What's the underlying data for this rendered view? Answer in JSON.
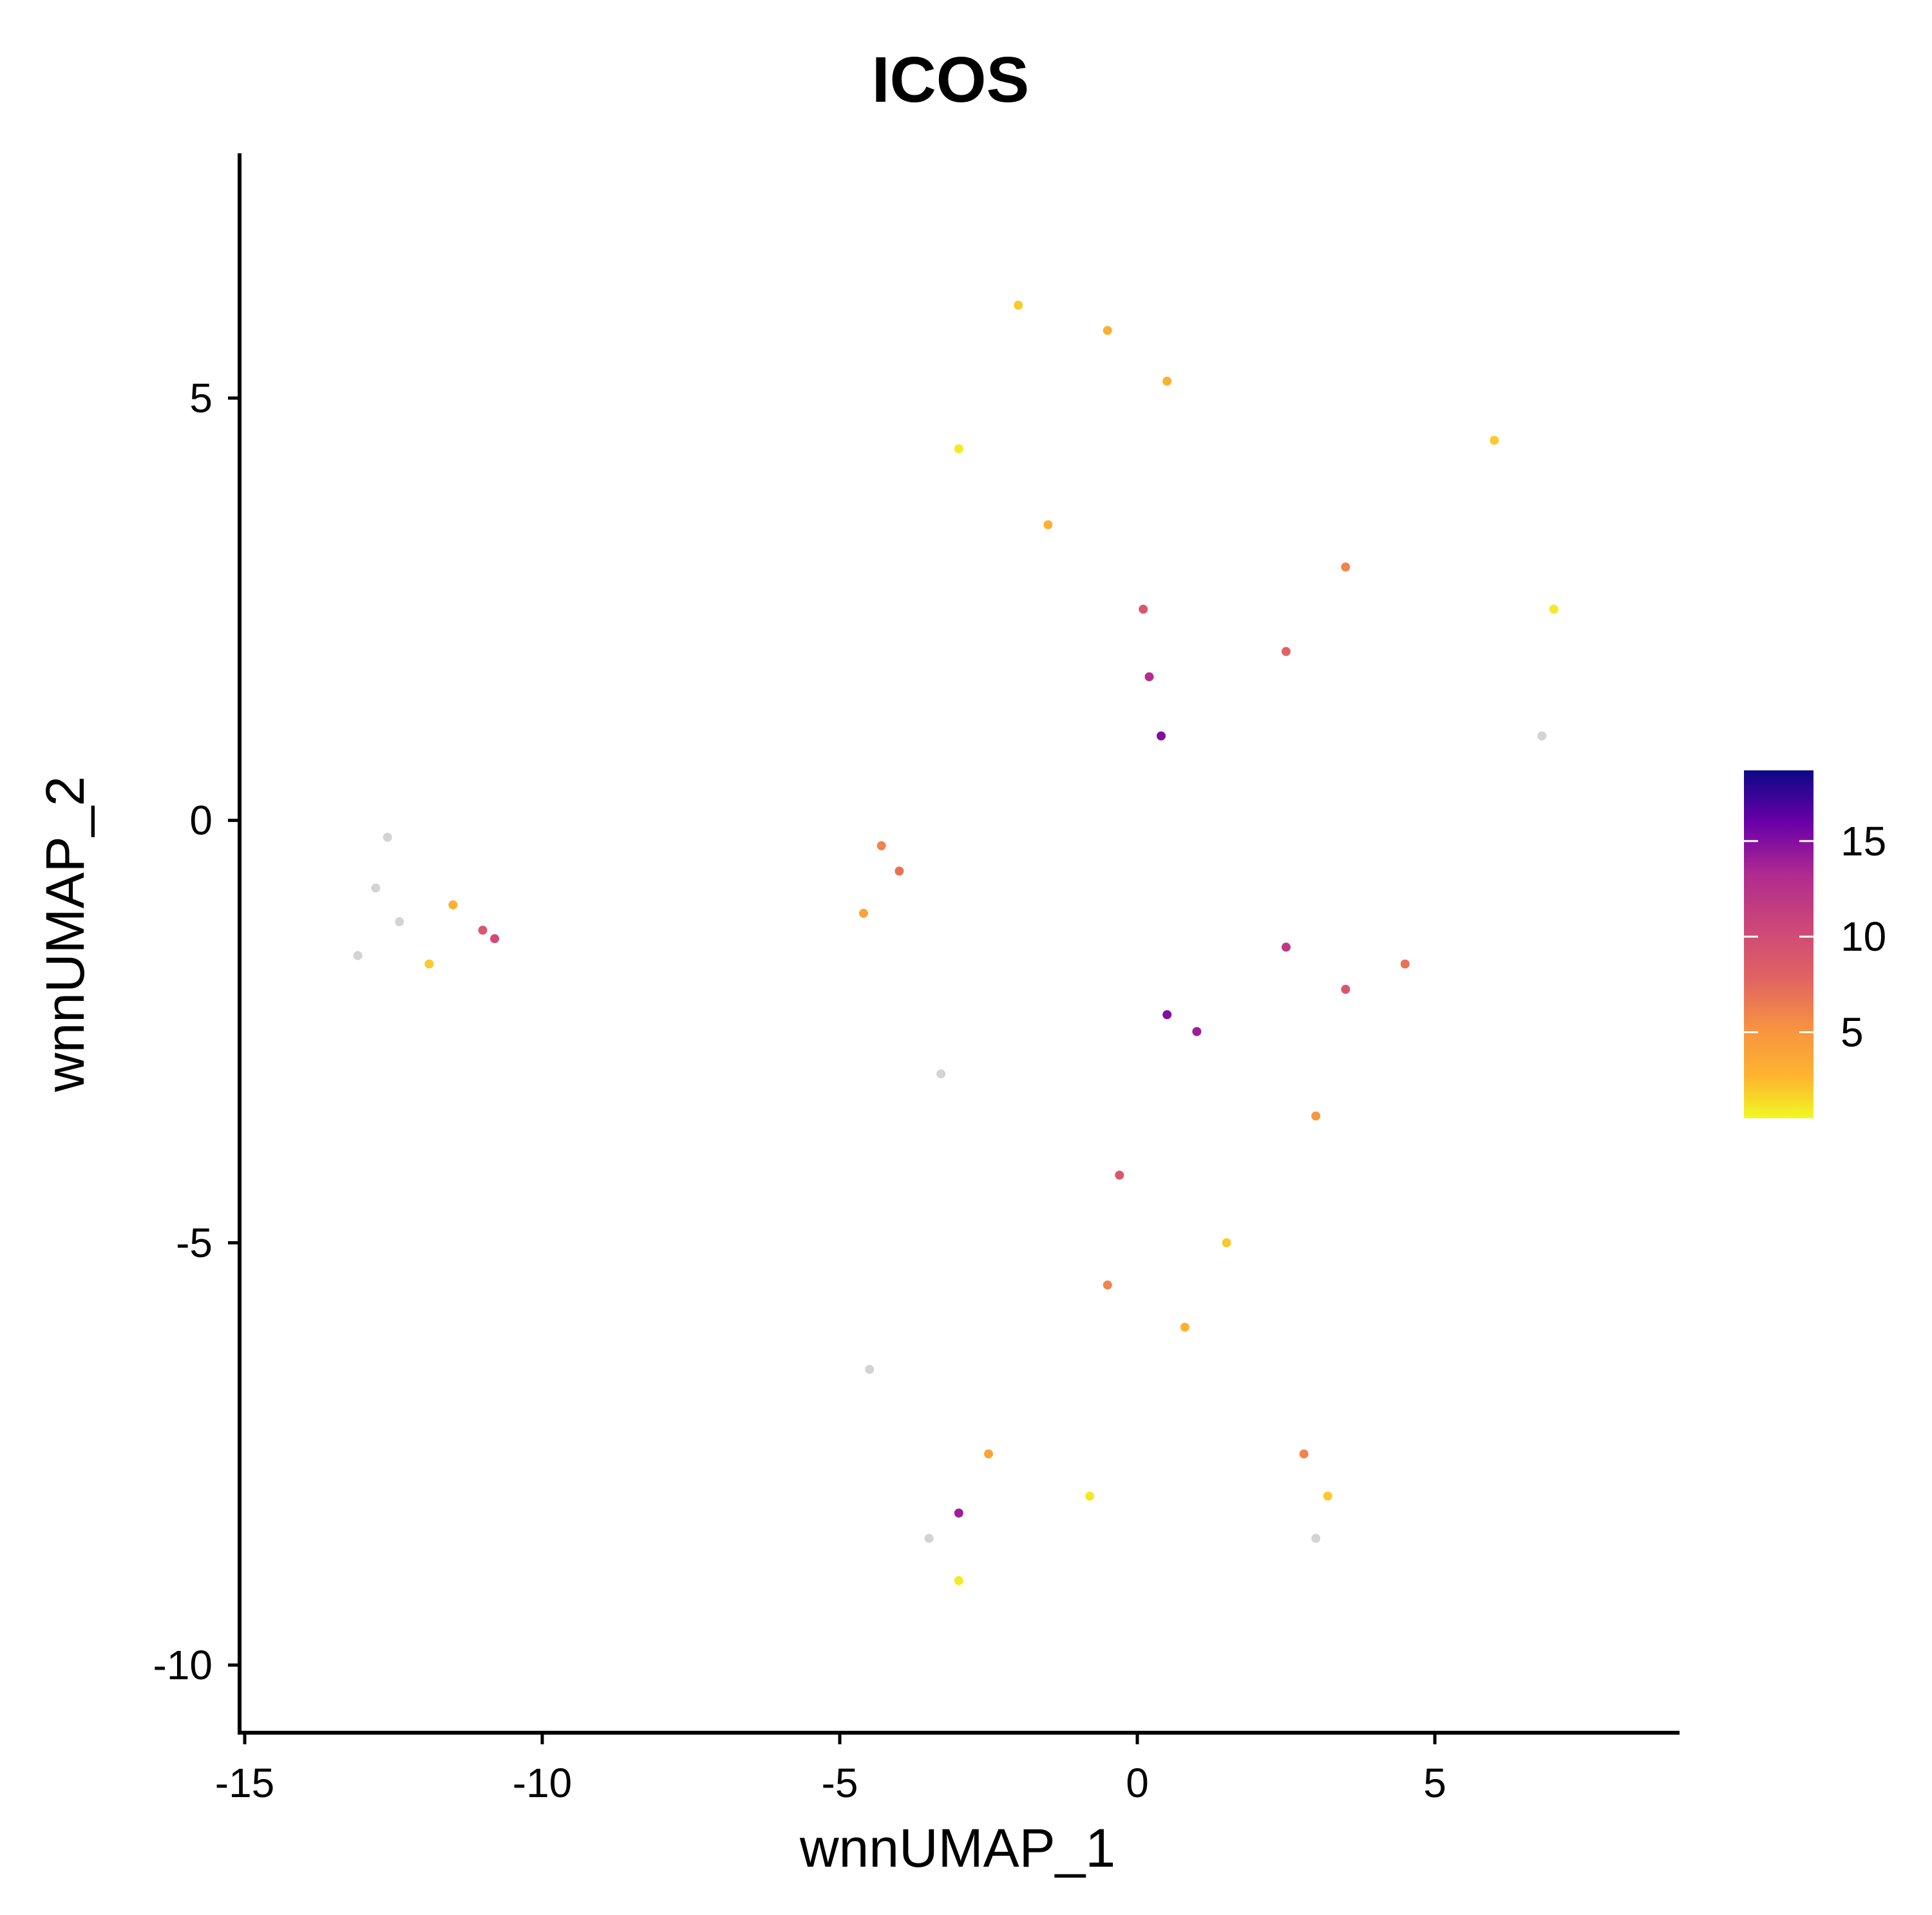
{
  "chart_data": {
    "type": "scatter",
    "title": "ICOS",
    "xlabel": "wnnUMAP_1",
    "ylabel": "wnnUMAP_2",
    "xlim": [
      -15.2,
      9
    ],
    "ylim": [
      -10.8,
      7.9
    ],
    "xticks": [
      -15,
      -10,
      -5,
      0,
      5
    ],
    "xtick_labels": [
      "-15",
      "-10",
      "-5",
      "0",
      "5"
    ],
    "yticks": [
      -10,
      -5,
      0,
      5
    ],
    "ytick_labels": [
      "-10",
      "-5",
      "0",
      "5"
    ],
    "grid": false,
    "legend": {
      "placement": "right",
      "type": "colorbar",
      "range": [
        0.5,
        18.7
      ],
      "ticks": [
        5,
        10,
        15
      ],
      "tick_labels": [
        "5",
        "10",
        "15"
      ]
    },
    "colors": {
      "zero_expression": "#d3d3d3",
      "colormap": "plasma",
      "scale_low": "#f0f921",
      "scale_high": "#0d0887"
    },
    "series": [
      {
        "kind": "sampled_points",
        "points": [
          [
            -12.8,
            -0.8,
            0
          ],
          [
            -12.4,
            -1.2,
            0
          ],
          [
            -13.1,
            -1.6,
            0
          ],
          [
            -12.6,
            -0.2,
            0
          ],
          [
            -11.5,
            -1.0,
            3
          ],
          [
            -11.0,
            -1.3,
            9
          ],
          [
            -10.8,
            -1.4,
            10
          ],
          [
            -11.9,
            -1.7,
            2
          ],
          [
            -4.3,
            -0.3,
            6
          ],
          [
            -4.6,
            -1.1,
            4
          ],
          [
            -4.0,
            -0.6,
            7
          ],
          [
            -0.5,
            5.8,
            3
          ],
          [
            -2.0,
            6.1,
            2
          ],
          [
            0.5,
            5.2,
            3
          ],
          [
            -3.0,
            4.4,
            1
          ],
          [
            -1.5,
            3.5,
            3
          ],
          [
            0.2,
            1.7,
            13
          ],
          [
            0.4,
            1.0,
            15
          ],
          [
            0.1,
            2.5,
            9
          ],
          [
            2.5,
            2.0,
            8
          ],
          [
            3.5,
            3.0,
            6
          ],
          [
            6.0,
            4.5,
            2
          ],
          [
            7.0,
            2.5,
            1
          ],
          [
            6.8,
            1.0,
            0
          ],
          [
            0.5,
            -2.3,
            15
          ],
          [
            1.0,
            -2.5,
            14
          ],
          [
            2.5,
            -1.5,
            12
          ],
          [
            3.5,
            -2.0,
            9
          ],
          [
            4.5,
            -1.7,
            7
          ],
          [
            3.0,
            -3.5,
            5
          ],
          [
            -0.3,
            -4.2,
            9
          ],
          [
            -0.5,
            -5.5,
            6
          ],
          [
            0.8,
            -6.0,
            3
          ],
          [
            1.5,
            -5.0,
            2
          ],
          [
            -4.5,
            -6.5,
            0
          ],
          [
            -3.5,
            -8.5,
            0
          ],
          [
            -3.0,
            -9.0,
            1
          ],
          [
            -2.5,
            -7.5,
            4
          ],
          [
            -3.0,
            -8.2,
            14
          ],
          [
            -0.8,
            -8.0,
            1
          ],
          [
            2.8,
            -7.5,
            6
          ],
          [
            3.2,
            -8.0,
            2
          ],
          [
            3.0,
            -8.5,
            0
          ],
          [
            -3.3,
            -3.0,
            0
          ]
        ]
      }
    ]
  }
}
